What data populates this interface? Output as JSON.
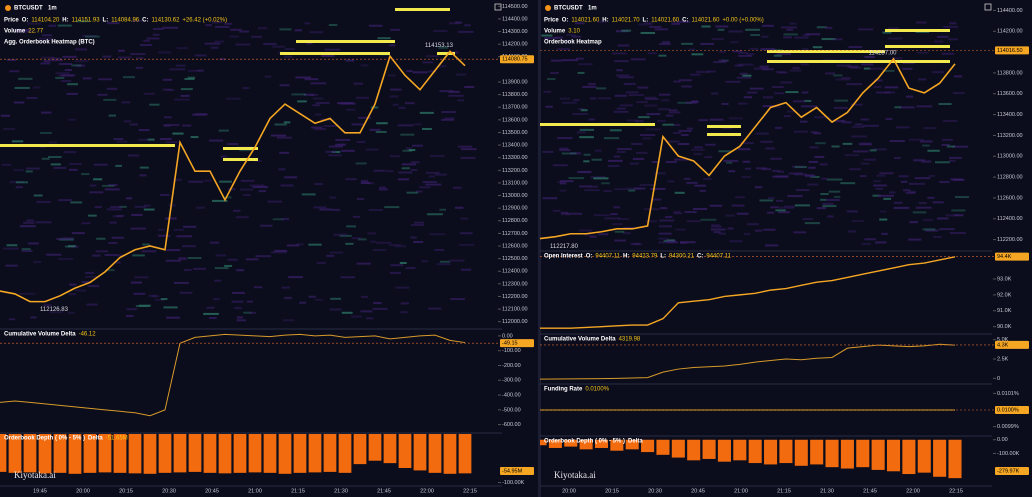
{
  "watermark": "Kiyotaka.ai",
  "left": {
    "symbol": "BTCUSDT",
    "interval": "1m",
    "price_label": "Price",
    "ohlc": [
      "O:",
      "114104.20",
      "H:",
      "114151.93",
      "L:",
      "114084.96",
      "C:",
      "114130.62",
      "+26.42 (+0.02%)"
    ],
    "volume": {
      "label": "Volume",
      "value": "22.77"
    },
    "indicator": "Agg. Orderbook Heatmap (BTC)",
    "price": {
      "ylim": [
        111950,
        114550
      ],
      "yticks": [
        {
          "value": 114500,
          "label": "114500.00"
        },
        {
          "value": 114400,
          "label": "114400.00"
        },
        {
          "value": 114300,
          "label": "114300.00"
        },
        {
          "value": 114200,
          "label": "114200.00"
        },
        {
          "value": 114100,
          "label": "114100.00"
        },
        {
          "value": 113900,
          "label": "113900.00"
        },
        {
          "value": 113800,
          "label": "113800.00"
        },
        {
          "value": 113700,
          "label": "113700.00"
        },
        {
          "value": 113600,
          "label": "113600.00"
        },
        {
          "value": 113500,
          "label": "113500.00"
        },
        {
          "value": 113400,
          "label": "113400.00"
        },
        {
          "value": 113300,
          "label": "113300.00"
        },
        {
          "value": 113200,
          "label": "113200.00"
        },
        {
          "value": 113100,
          "label": "113100.00"
        },
        {
          "value": 113000,
          "label": "113000.00"
        },
        {
          "value": 112900,
          "label": "112900.00"
        },
        {
          "value": 112800,
          "label": "112800.00"
        },
        {
          "value": 112700,
          "label": "112700.00"
        },
        {
          "value": 112600,
          "label": "112600.00"
        },
        {
          "value": 112500,
          "label": "112500.00"
        },
        {
          "value": 112400,
          "label": "112400.00"
        },
        {
          "value": 112300,
          "label": "112300.00"
        },
        {
          "value": 112200,
          "label": "112200.00"
        },
        {
          "value": 112100,
          "label": "112100.00"
        },
        {
          "value": 112000,
          "label": "112000.00"
        }
      ],
      "values": [
        112243,
        112220,
        112159,
        112159,
        112205,
        112266,
        112311,
        112395,
        112509,
        112570,
        112600,
        112570,
        113421,
        113193,
        113193,
        112965,
        113193,
        113383,
        113611,
        113725,
        113649,
        113573,
        113611,
        113497,
        113497,
        113725,
        114105,
        113953,
        113839,
        113991,
        114143,
        114029
      ],
      "current": {
        "value": 114080.75,
        "label": "114080.75"
      },
      "high_label": "114153.13",
      "low_label": "112126.83"
    },
    "cvd": {
      "title": "Cumulative Volume Delta",
      "value": "-46.12",
      "ylim": [
        -650,
        40
      ],
      "yticks": [
        {
          "value": 0,
          "label": "0.00"
        },
        {
          "value": -100,
          "label": "-100.00"
        },
        {
          "value": -200,
          "label": "-200.00"
        },
        {
          "value": -300,
          "label": "-300.00"
        },
        {
          "value": -400,
          "label": "-400.00"
        },
        {
          "value": -500,
          "label": "-500.00"
        },
        {
          "value": -600,
          "label": "-600.00"
        }
      ],
      "values": [
        -450,
        -440,
        -450,
        -460,
        -470,
        -480,
        -490,
        -500,
        -510,
        -520,
        -540,
        -500,
        -50,
        -10,
        0,
        10,
        5,
        0,
        -5,
        5,
        10,
        0,
        5,
        -10,
        -5,
        0,
        -20,
        -10,
        0,
        5,
        -30,
        -45
      ],
      "current": {
        "value": -49.15,
        "label": "-49.15"
      }
    },
    "depth": {
      "title": "Orderbook Depth ( 0% - 5% )",
      "delta": "Delta",
      "delta_value": "-51.65M",
      "ylim": [
        -105000,
        0
      ],
      "yticks": [
        {
          "value": -100000,
          "label": "-100.00K"
        }
      ],
      "values": [
        -78000,
        -80000,
        -79000,
        -81000,
        -80000,
        -82000,
        -80000,
        -79000,
        -80000,
        -81000,
        -82000,
        -80000,
        -79000,
        -78000,
        -80000,
        -81000,
        -80000,
        -79000,
        -80000,
        -82000,
        -80000,
        -79000,
        -78000,
        -80000,
        -62000,
        -55000,
        -60000,
        -70000,
        -75000,
        -80000,
        -82000,
        -81000
      ],
      "current_label": "-54.95M"
    },
    "times": [
      "19:45",
      "20:00",
      "20:15",
      "20:30",
      "20:45",
      "21:00",
      "21:15",
      "21:30",
      "21:45",
      "22:00",
      "22:15"
    ]
  },
  "right": {
    "symbol": "BTCUSDT",
    "interval": "1m",
    "price_label": "Price",
    "ohlc": [
      "O:",
      "114021.60",
      "H:",
      "114021.70",
      "L:",
      "114021.60",
      "C:",
      "114021.60",
      "+0.00 (+0.00%)"
    ],
    "volume": {
      "label": "Volume",
      "value": "3.10"
    },
    "indicator": "Orderbook Heatmap",
    "price": {
      "ylim": [
        112100,
        114500
      ],
      "yticks": [
        {
          "value": 114400,
          "label": "114400.00"
        },
        {
          "value": 114200,
          "label": "114200.00"
        },
        {
          "value": 113800,
          "label": "113800.00"
        },
        {
          "value": 113600,
          "label": "113600.00"
        },
        {
          "value": 113400,
          "label": "113400.00"
        },
        {
          "value": 113200,
          "label": "113200.00"
        },
        {
          "value": 113000,
          "label": "113000.00"
        },
        {
          "value": 112800,
          "label": "112800.00"
        },
        {
          "value": 112600,
          "label": "112600.00"
        },
        {
          "value": 112400,
          "label": "112400.00"
        },
        {
          "value": 112200,
          "label": "112200.00"
        }
      ],
      "values": [
        112210,
        112228,
        112256,
        112256,
        112275,
        112303,
        112303,
        112331,
        113188,
        113002,
        112955,
        112816,
        113002,
        113095,
        113282,
        113468,
        113515,
        113375,
        113468,
        113328,
        113421,
        113608,
        113748,
        113934,
        113654,
        113608,
        113701,
        113887
      ],
      "current": {
        "value": 114016.5,
        "label": "114016.50"
      },
      "high_label": "114287.00",
      "low_label": "112217.80"
    },
    "oi": {
      "title": "Open Interest",
      "ohlc": [
        "O:",
        "94407.11",
        "H:",
        "94423.79",
        "L:",
        "94300.21",
        "C:",
        "94407.11"
      ],
      "ylim": [
        89600,
        94700
      ],
      "yticks": [
        {
          "value": 90000,
          "label": "90.0K"
        },
        {
          "value": 91000,
          "label": "91.0K"
        },
        {
          "value": 92000,
          "label": "92.0K"
        },
        {
          "value": 93000,
          "label": "93.0K"
        }
      ],
      "values": [
        89900,
        89900,
        89900,
        89950,
        90000,
        90050,
        90100,
        90100,
        90500,
        91500,
        91600,
        91700,
        91900,
        92000,
        92100,
        92300,
        92400,
        92600,
        92800,
        92900,
        93100,
        93300,
        93500,
        93700,
        93900,
        94000,
        94200,
        94400
      ],
      "current": {
        "value": 94407.11,
        "label": "94.4K"
      }
    },
    "cvd": {
      "title": "Cumulative Volume Delta",
      "value": "4319.98",
      "ylim": [
        -600,
        5600
      ],
      "yticks": [
        {
          "value": 0,
          "label": "0"
        },
        {
          "value": 2500,
          "label": "2.5K"
        },
        {
          "value": 5000,
          "label": "5.0K"
        }
      ],
      "values": [
        -100,
        -80,
        -60,
        -50,
        -40,
        0,
        50,
        100,
        800,
        1200,
        1400,
        1500,
        1600,
        1800,
        2100,
        2300,
        2500,
        2400,
        2600,
        2700,
        3900,
        4100,
        4300,
        4200,
        4100,
        4200,
        4400,
        4300
      ],
      "current": {
        "value": 4319.98,
        "label": "4.3K"
      }
    },
    "funding": {
      "title": "Funding Rate",
      "value": "0.0100%",
      "ylim": [
        0.00985,
        0.01015
      ],
      "yticks": [
        {
          "value": 0.0101,
          "label": "0.0101%"
        },
        {
          "value": 0.0099,
          "label": "0.0099%"
        }
      ],
      "values": [
        0.01,
        0.01,
        0.01,
        0.01,
        0.01,
        0.01,
        0.01,
        0.01,
        0.01,
        0.01,
        0.01,
        0.01,
        0.01,
        0.01,
        0.01,
        0.01,
        0.01,
        0.01,
        0.01,
        0.01,
        0.01,
        0.01,
        0.01,
        0.01,
        0.01,
        0.01,
        0.01,
        0.01
      ],
      "current": {
        "value": 0.01,
        "label": "0.0100%"
      }
    },
    "depth": {
      "title": "Orderbook Depth ( 0% - 5% )",
      "delta": "Delta",
      "ylim": [
        -330000,
        20000
      ],
      "yticks": [
        {
          "value": 0,
          "label": "0.00"
        },
        {
          "value": -100000,
          "label": "-100.00K"
        }
      ],
      "values": [
        -40000,
        -60000,
        -50000,
        -70000,
        -60000,
        -80000,
        -70000,
        -90000,
        -110000,
        -130000,
        -150000,
        -140000,
        -160000,
        -150000,
        -170000,
        -180000,
        -170000,
        -190000,
        -180000,
        -200000,
        -210000,
        -200000,
        -220000,
        -230000,
        -250000,
        -240000,
        -270000,
        -280000
      ],
      "current_label": "-279.97K"
    },
    "times": [
      "20:00",
      "20:15",
      "20:30",
      "20:45",
      "21:00",
      "21:15",
      "21:30",
      "21:45",
      "22:00",
      "22:15"
    ]
  }
}
